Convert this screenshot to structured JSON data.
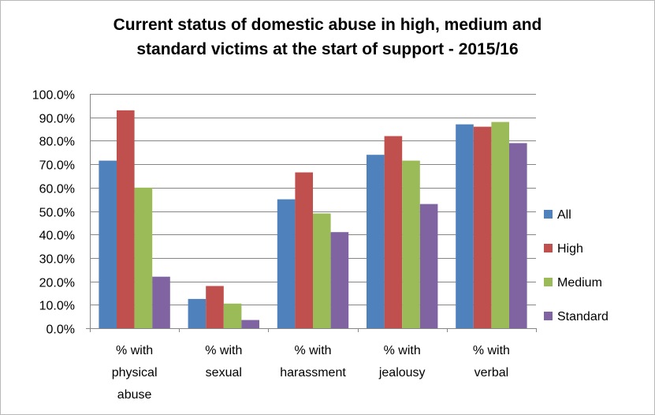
{
  "chart_data": {
    "type": "bar",
    "title_lines": [
      "Current status of domestic abuse in high, medium and",
      "standard victims at the start of support - 2015/16"
    ],
    "categories": [
      [
        "% with",
        "physical",
        "abuse"
      ],
      [
        "% with",
        "sexual"
      ],
      [
        "% with",
        "harassment"
      ],
      [
        "% with",
        "jealousy"
      ],
      [
        "% with",
        "verbal"
      ]
    ],
    "series": [
      {
        "name": "All",
        "color": "#4f81bd",
        "values": [
          71.5,
          12.5,
          55.0,
          74.0,
          87.0
        ]
      },
      {
        "name": "High",
        "color": "#c0504d",
        "values": [
          93.0,
          18.0,
          66.5,
          82.0,
          86.0
        ]
      },
      {
        "name": "Medium",
        "color": "#9bbb59",
        "values": [
          60.0,
          10.5,
          49.0,
          71.5,
          88.0
        ]
      },
      {
        "name": "Standard",
        "color": "#8064a2",
        "values": [
          22.0,
          3.5,
          41.0,
          53.0,
          79.0
        ]
      }
    ],
    "ylim": [
      0,
      100
    ],
    "yticks": [
      "0.0%",
      "10.0%",
      "20.0%",
      "30.0%",
      "40.0%",
      "50.0%",
      "60.0%",
      "70.0%",
      "80.0%",
      "90.0%",
      "100.0%"
    ],
    "grid": true,
    "legend_position": "right",
    "xlabel": "",
    "ylabel": ""
  }
}
